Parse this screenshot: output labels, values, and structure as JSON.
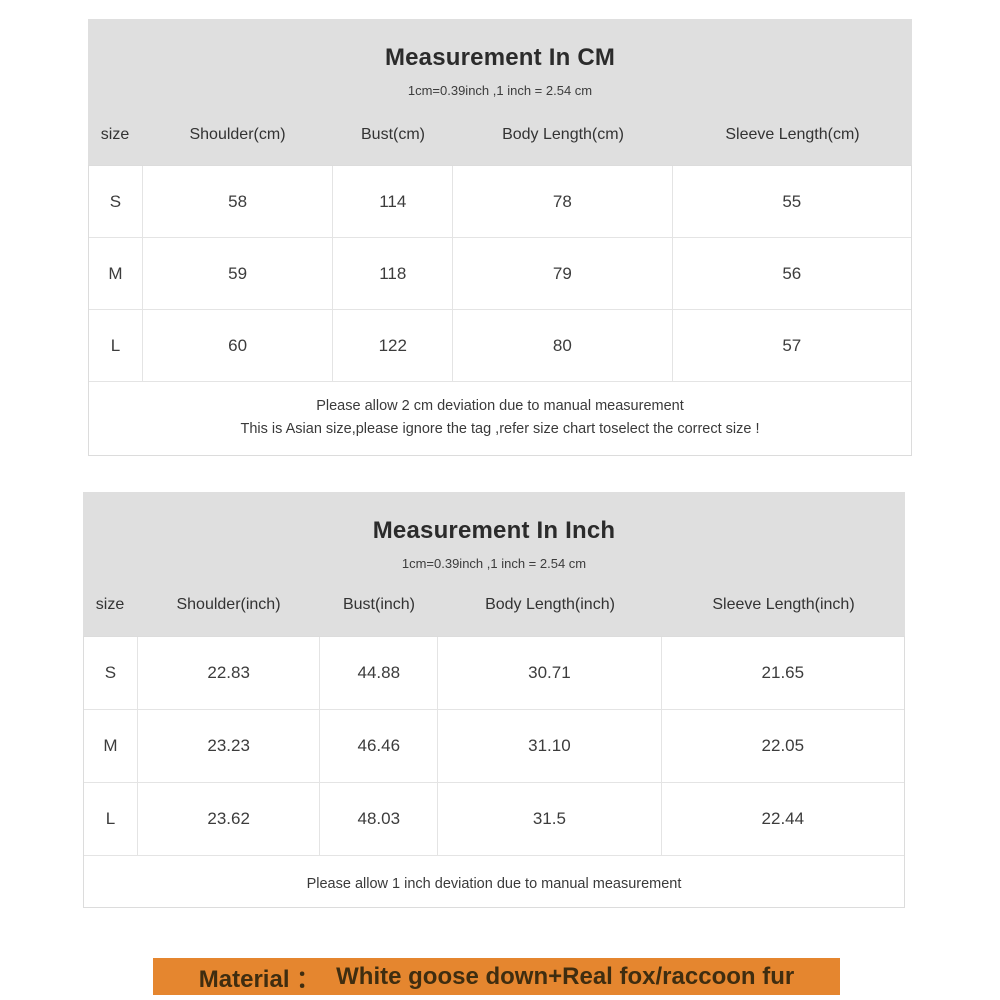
{
  "tables": [
    {
      "title": "Measurement In CM",
      "subtitle": "1cm=0.39inch ,1 inch = 2.54 cm",
      "columns": [
        "size",
        "Shoulder(cm)",
        "Bust(cm)",
        "Body Length(cm)",
        "Sleeve Length(cm)"
      ],
      "rows": [
        [
          "S",
          "58",
          "114",
          "78",
          "55"
        ],
        [
          "M",
          "59",
          "118",
          "79",
          "56"
        ],
        [
          "L",
          "60",
          "122",
          "80",
          "57"
        ]
      ],
      "notes": [
        "Please allow 2 cm deviation due to manual measurement",
        "This is Asian size,please ignore the tag ,refer size chart toselect the correct size !"
      ]
    },
    {
      "title": "Measurement In Inch",
      "subtitle": "1cm=0.39inch ,1 inch = 2.54 cm",
      "columns": [
        "size",
        "Shoulder(inch)",
        "Bust(inch)",
        "Body Length(inch)",
        "Sleeve Length(inch)"
      ],
      "rows": [
        [
          "S",
          "22.83",
          "44.88",
          "30.71",
          "21.65"
        ],
        [
          "M",
          "23.23",
          "46.46",
          "31.10",
          "22.05"
        ],
        [
          "L",
          "23.62",
          "48.03",
          "31.5",
          "22.44"
        ]
      ],
      "notes": [
        "Please allow 1 inch deviation due to manual measurement"
      ]
    }
  ],
  "material": {
    "label": "Material ：",
    "value": "White goose down+Real fox/raccoon fur"
  },
  "colors": {
    "table_header_bg": "#dfdfdf",
    "table_border": "#e4e4e4",
    "material_bg": "#e5862f",
    "material_text": "#3f2d10",
    "body_text": "#3a3a3a"
  }
}
